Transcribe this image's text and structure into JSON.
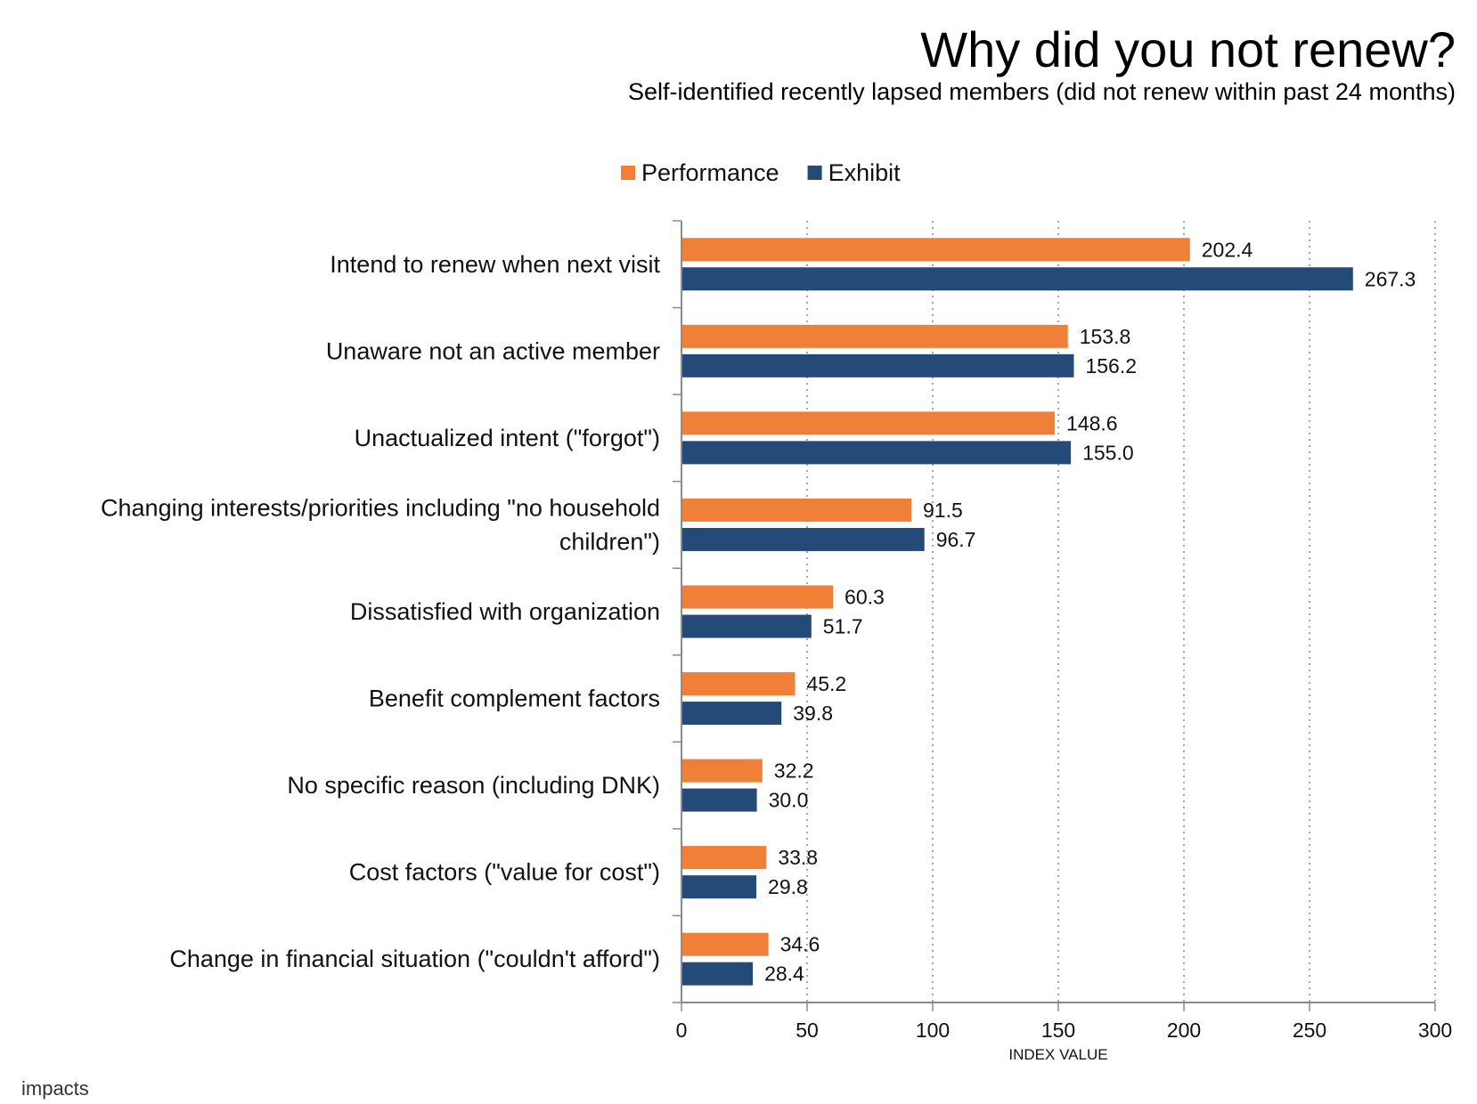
{
  "header": {
    "title": "Why did you not renew?",
    "subtitle": "Self-identified recently lapsed members (did not renew within past 24 months)"
  },
  "footer": {
    "logo_text": "impacts"
  },
  "chart_data": {
    "type": "bar",
    "orientation": "horizontal",
    "categories": [
      "Intend to renew when next visit",
      "Unaware not an active member",
      "Unactualized intent (\"forgot\")",
      "Changing interests/priorities including \"no household children\")",
      "Dissatisfied with organization",
      "Benefit complement factors",
      "No specific reason (including DNK)",
      "Cost factors (\"value for cost\")",
      "Change in financial situation (\"couldn't afford\")"
    ],
    "category_label_lines": [
      [
        "Intend to renew when next visit"
      ],
      [
        "Unaware not an active member"
      ],
      [
        "Unactualized intent (\"forgot\")"
      ],
      [
        "Changing interests/priorities including \"no household",
        "children\")"
      ],
      [
        "Dissatisfied with organization"
      ],
      [
        "Benefit complement factors"
      ],
      [
        "No specific reason (including DNK)"
      ],
      [
        "Cost factors (\"value for cost\")"
      ],
      [
        "Change in financial situation (\"couldn't afford\")"
      ]
    ],
    "series": [
      {
        "name": "Performance",
        "color": "#F07F38",
        "values": [
          202.4,
          153.8,
          148.6,
          91.5,
          60.3,
          45.2,
          32.2,
          33.8,
          34.6
        ],
        "labels": [
          "202.4",
          "153.8",
          "148.6",
          "91.5",
          "60.3",
          "45.2",
          "32.2",
          "33.8",
          "34.6"
        ]
      },
      {
        "name": "Exhibit",
        "color": "#244A77",
        "values": [
          267.3,
          156.2,
          155.0,
          96.7,
          51.7,
          39.8,
          30.0,
          29.8,
          28.4
        ],
        "labels": [
          "267.3",
          "156.2",
          "155.0",
          "96.7",
          "51.7",
          "39.8",
          "30.0",
          "29.8",
          "28.4"
        ]
      }
    ],
    "xlabel": "INDEX VALUE",
    "xlim": [
      0,
      300
    ],
    "xticks": [
      "0",
      "50",
      "100",
      "150",
      "200",
      "250",
      "300"
    ],
    "grid": "vertical dotted",
    "legend_position": "top-center"
  }
}
